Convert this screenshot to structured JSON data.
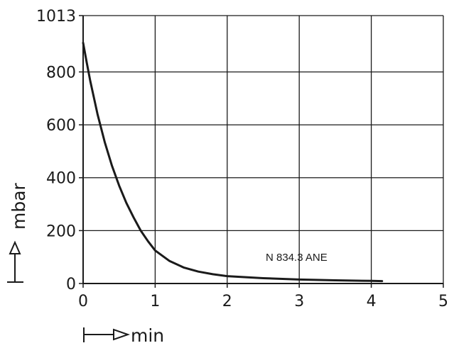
{
  "chart_data": {
    "type": "line",
    "xlabel": "min",
    "ylabel": "mbar",
    "x_ticks": [
      "0",
      "1",
      "2",
      "3",
      "4",
      "5"
    ],
    "y_ticks": [
      "0",
      "200",
      "400",
      "600",
      "800",
      "1013"
    ],
    "xlim": [
      0,
      5
    ],
    "ylim": [
      0,
      1013
    ],
    "grid": true,
    "annotation": "N 834.3 ANE",
    "series": [
      {
        "x": [
          0,
          0.05,
          0.1,
          0.2,
          0.3,
          0.4,
          0.5,
          0.6,
          0.7,
          0.8,
          0.9,
          1.0,
          1.2,
          1.4,
          1.6,
          1.8,
          2.0,
          2.5,
          3.0,
          3.5,
          4.0,
          4.15
        ],
        "y": [
          910,
          835,
          765,
          640,
          535,
          445,
          370,
          305,
          250,
          200,
          160,
          125,
          85,
          60,
          45,
          35,
          28,
          20,
          15,
          12,
          10,
          9
        ]
      }
    ],
    "colors": {
      "line": "#1a1a1a",
      "grid": "#1a1a1a"
    }
  }
}
